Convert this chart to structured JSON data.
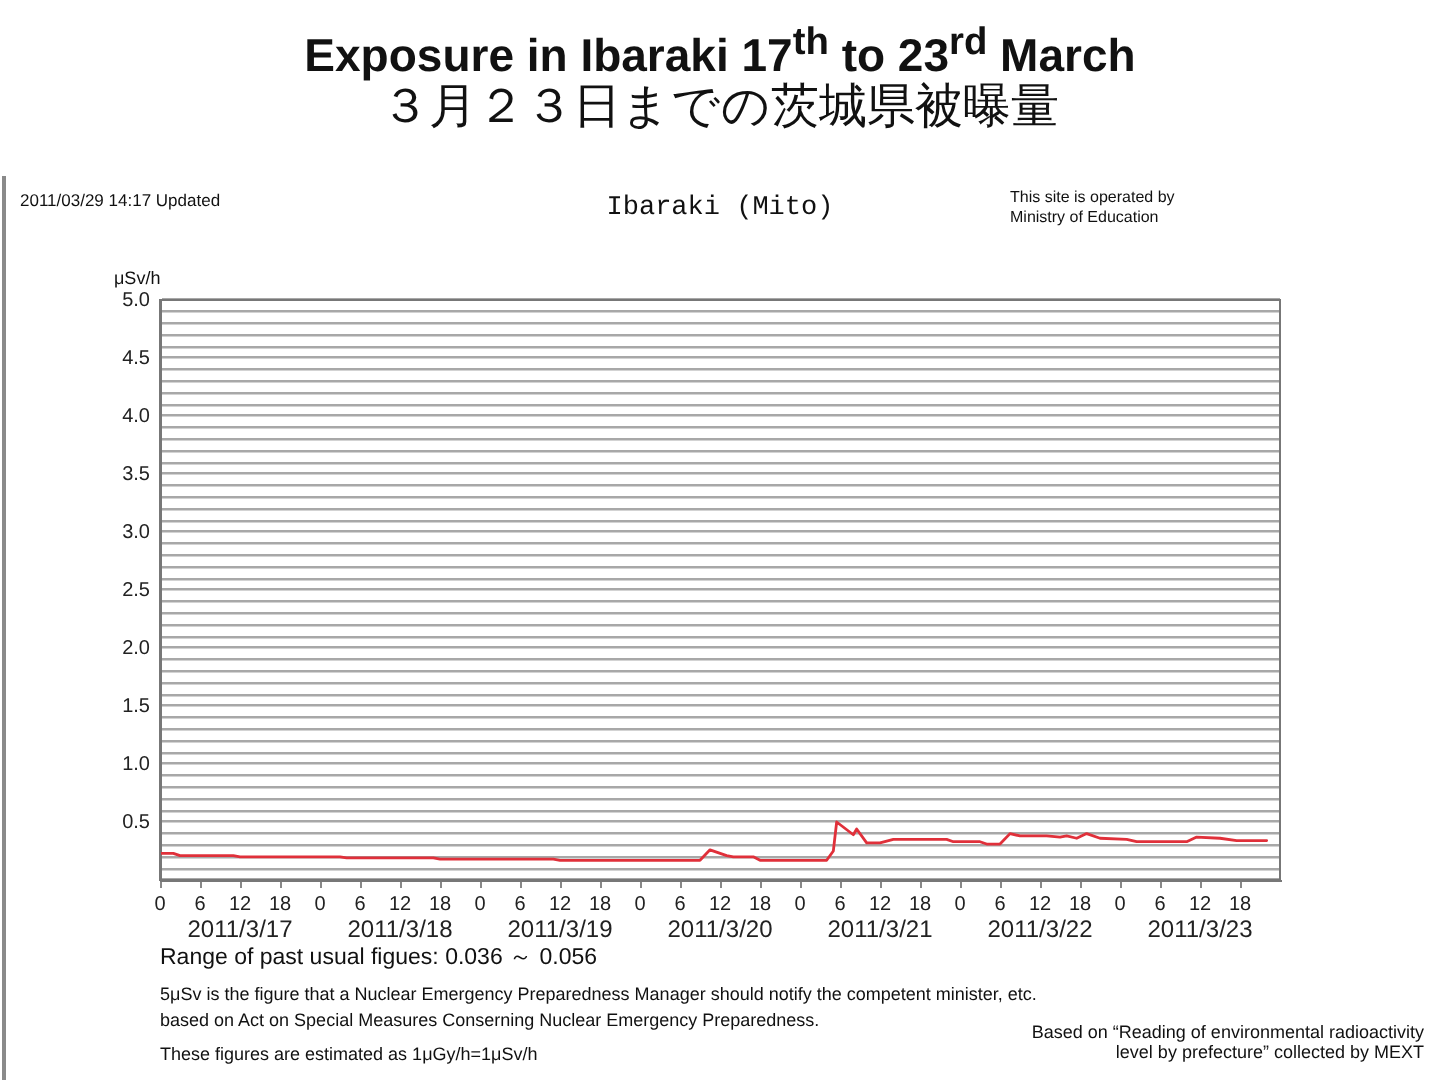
{
  "chart_data": {
    "type": "line",
    "title": "Exposure in Ibaraki 17$^{th}$ to 23$^{rd}$ March",
    "subtitle": "３月２３日までの茨城県被曝量",
    "ylabel": "μSv/h",
    "annotations": [
      "2011/03/29 14:17 Updated",
      "Ibaraki (Mito)",
      "This site is operated by Ministry of Education",
      "Range of past usual figues: 0.036 ～ 0.056",
      "5μSv is the figure that a Nuclear Emergency Preparedness Manager should notify the competent minister, etc.",
      "based on Act on Special Measures Conserning Nuclear Emergency Preparedness.",
      "These figures are estimated as 1μGy/h=1μSv/h",
      "Based on “Reading of environmental radioactivity",
      "level by prefecture” collected by MEXT"
    ],
    "x": [
      "2011-03-17T00:00",
      "2011-03-17T02:00",
      "2011-03-17T03:00",
      "2011-03-17T11:00",
      "2011-03-17T12:00",
      "2011-03-18T03:00",
      "2011-03-18T04:00",
      "2011-03-18T17:00",
      "2011-03-18T18:00",
      "2011-03-19T11:00",
      "2011-03-19T12:00",
      "2011-03-20T09:00",
      "2011-03-20T10:30",
      "2011-03-20T13:00",
      "2011-03-20T14:00",
      "2011-03-20T17:00",
      "2011-03-20T18:00",
      "2011-03-21T04:00",
      "2011-03-21T05:00",
      "2011-03-21T05:30",
      "2011-03-21T08:00",
      "2011-03-21T08:30",
      "2011-03-21T10:00",
      "2011-03-21T12:00",
      "2011-03-21T14:00",
      "2011-03-21T22:00",
      "2011-03-21T23:00",
      "2011-03-22T03:00",
      "2011-03-22T04:00",
      "2011-03-22T06:00",
      "2011-03-22T07:30",
      "2011-03-22T09:00",
      "2011-03-22T13:00",
      "2011-03-22T15:00",
      "2011-03-22T16:00",
      "2011-03-22T17:30",
      "2011-03-22T19:00",
      "2011-03-22T21:00",
      "2011-03-23T01:00",
      "2011-03-23T02:30",
      "2011-03-23T10:00",
      "2011-03-23T11:30",
      "2011-03-23T15:00",
      "2011-03-23T17:30",
      "2011-03-23T22:00"
    ],
    "values": [
      0.23,
      0.23,
      0.21,
      0.21,
      0.2,
      0.2,
      0.19,
      0.19,
      0.18,
      0.18,
      0.17,
      0.17,
      0.26,
      0.21,
      0.2,
      0.2,
      0.17,
      0.17,
      0.25,
      0.5,
      0.39,
      0.44,
      0.32,
      0.32,
      0.35,
      0.35,
      0.33,
      0.33,
      0.31,
      0.31,
      0.4,
      0.38,
      0.38,
      0.37,
      0.38,
      0.36,
      0.4,
      0.36,
      0.35,
      0.33,
      0.33,
      0.37,
      0.36,
      0.34,
      0.34
    ],
    "color": "#e0303a",
    "marker": "none",
    "legend": false,
    "grid": "y",
    "xlim": [
      "2011-03-17T00:00",
      "2011-03-24T00:00"
    ],
    "xticks": [
      {
        "value": "2011-03-17T00:00",
        "label": "0"
      },
      {
        "value": "2011-03-17T06:00",
        "label": "6"
      },
      {
        "value": "2011-03-17T12:00",
        "label": "12"
      },
      {
        "value": "2011-03-17T18:00",
        "label": "18"
      },
      {
        "value": "2011-03-18T00:00",
        "label": "0"
      },
      {
        "value": "2011-03-18T06:00",
        "label": "6"
      },
      {
        "value": "2011-03-18T12:00",
        "label": "12"
      },
      {
        "value": "2011-03-18T18:00",
        "label": "18"
      },
      {
        "value": "2011-03-19T00:00",
        "label": "0"
      },
      {
        "value": "2011-03-19T06:00",
        "label": "6"
      },
      {
        "value": "2011-03-19T12:00",
        "label": "12"
      },
      {
        "value": "2011-03-19T18:00",
        "label": "18"
      },
      {
        "value": "2011-03-20T00:00",
        "label": "0"
      },
      {
        "value": "2011-03-20T06:00",
        "label": "6"
      },
      {
        "value": "2011-03-20T12:00",
        "label": "12"
      },
      {
        "value": "2011-03-20T18:00",
        "label": "18"
      },
      {
        "value": "2011-03-21T00:00",
        "label": "0"
      },
      {
        "value": "2011-03-21T06:00",
        "label": "6"
      },
      {
        "value": "2011-03-21T12:00",
        "label": "12"
      },
      {
        "value": "2011-03-21T18:00",
        "label": "18"
      },
      {
        "value": "2011-03-22T00:00",
        "label": "0"
      },
      {
        "value": "2011-03-22T06:00",
        "label": "6"
      },
      {
        "value": "2011-03-22T12:00",
        "label": "12"
      },
      {
        "value": "2011-03-22T18:00",
        "label": "18"
      },
      {
        "value": "2011-03-23T00:00",
        "label": "0"
      },
      {
        "value": "2011-03-23T06:00",
        "label": "6"
      },
      {
        "value": "2011-03-23T12:00",
        "label": "12"
      },
      {
        "value": "2011-03-23T18:00",
        "label": "18"
      }
    ],
    "x2lim": [
      "2011-03-17T00:00",
      "2011-03-24T00:00"
    ],
    "x2ticks": [
      {
        "value": "2011-03-17T12:00",
        "label": "2011/3/17"
      },
      {
        "value": "2011-03-18T12:00",
        "label": "2011/3/18"
      },
      {
        "value": "2011-03-19T12:00",
        "label": "2011/3/19"
      },
      {
        "value": "2011-03-20T12:00",
        "label": "2011/3/20"
      },
      {
        "value": "2011-03-21T12:00",
        "label": "2011/3/21"
      },
      {
        "value": "2011-03-22T12:00",
        "label": "2011/3/22"
      },
      {
        "value": "2011-03-23T12:00",
        "label": "2011/3/23"
      }
    ],
    "ylim": [
      0,
      5
    ],
    "yticks": [
      {
        "value": 0,
        "label": null
      },
      {
        "value": 0.1,
        "label": null
      },
      {
        "value": 0.2,
        "label": null
      },
      {
        "value": 0.3,
        "label": null
      },
      {
        "value": 0.4,
        "label": null
      },
      {
        "value": 0.5,
        "label": "0.5"
      },
      {
        "value": 0.6,
        "label": null
      },
      {
        "value": 0.7,
        "label": null
      },
      {
        "value": 0.8,
        "label": null
      },
      {
        "value": 0.9,
        "label": null
      },
      {
        "value": 1,
        "label": "1.0"
      },
      {
        "value": 1.1,
        "label": null
      },
      {
        "value": 1.2,
        "label": null
      },
      {
        "value": 1.3,
        "label": null
      },
      {
        "value": 1.4,
        "label": null
      },
      {
        "value": 1.5,
        "label": "1.5"
      },
      {
        "value": 1.6,
        "label": null
      },
      {
        "value": 1.7,
        "label": null
      },
      {
        "value": 1.8,
        "label": null
      },
      {
        "value": 1.9,
        "label": null
      },
      {
        "value": 2,
        "label": "2.0"
      },
      {
        "value": 2.1,
        "label": null
      },
      {
        "value": 2.2,
        "label": null
      },
      {
        "value": 2.3,
        "label": null
      },
      {
        "value": 2.4,
        "label": null
      },
      {
        "value": 2.5,
        "label": "2.5"
      },
      {
        "value": 2.6,
        "label": null
      },
      {
        "value": 2.7,
        "label": null
      },
      {
        "value": 2.8,
        "label": null
      },
      {
        "value": 2.9,
        "label": null
      },
      {
        "value": 3,
        "label": "3.0"
      },
      {
        "value": 3.1,
        "label": null
      },
      {
        "value": 3.2,
        "label": null
      },
      {
        "value": 3.3,
        "label": null
      },
      {
        "value": 3.4,
        "label": null
      },
      {
        "value": 3.5,
        "label": "3.5"
      },
      {
        "value": 3.6,
        "label": null
      },
      {
        "value": 3.7,
        "label": null
      },
      {
        "value": 3.8,
        "label": null
      },
      {
        "value": 3.9,
        "label": null
      },
      {
        "value": 4,
        "label": "4.0"
      },
      {
        "value": 4.1,
        "label": null
      },
      {
        "value": 4.2,
        "label": null
      },
      {
        "value": 4.3,
        "label": null
      },
      {
        "value": 4.4,
        "label": null
      },
      {
        "value": 4.5,
        "label": "4.5"
      },
      {
        "value": 4.6,
        "label": null
      },
      {
        "value": 4.7,
        "label": null
      },
      {
        "value": 4.8,
        "label": null
      },
      {
        "value": 4.9,
        "label": null
      },
      {
        "value": 5,
        "label": "5.0"
      }
    ]
  }
}
